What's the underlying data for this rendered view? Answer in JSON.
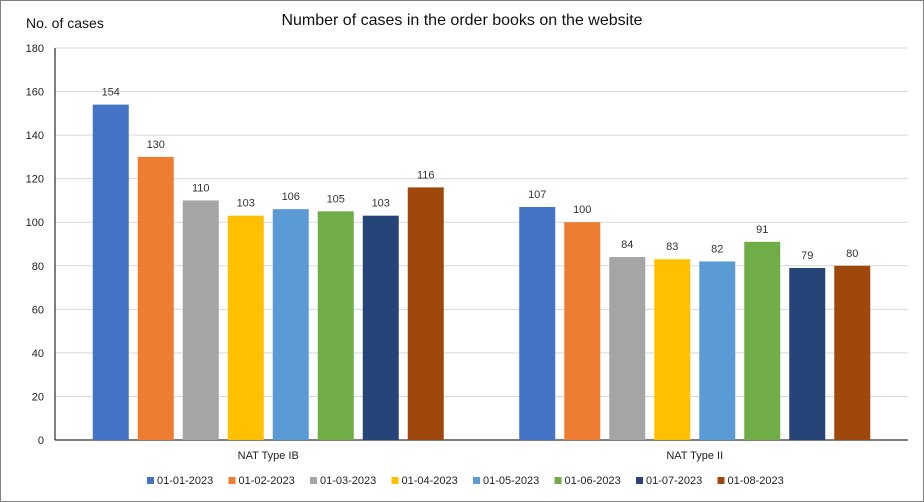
{
  "chart_data": {
    "type": "bar",
    "title": "Number of cases in the order books on the website",
    "ylabel": "No. of cases",
    "xlabel": "",
    "ylim": [
      0,
      180
    ],
    "yticks": [
      0,
      20,
      40,
      60,
      80,
      100,
      120,
      140,
      160,
      180
    ],
    "grid": true,
    "legend_position": "bottom",
    "categories": [
      "NAT Type IB",
      "NAT Type II"
    ],
    "series": [
      {
        "name": "01-01-2023",
        "color": "#4472C4",
        "values": [
          154,
          107
        ]
      },
      {
        "name": "01-02-2023",
        "color": "#ED7D31",
        "values": [
          130,
          100
        ]
      },
      {
        "name": "01-03-2023",
        "color": "#A5A5A5",
        "values": [
          110,
          84
        ]
      },
      {
        "name": "01-04-2023",
        "color": "#FFC000",
        "values": [
          103,
          83
        ]
      },
      {
        "name": "01-05-2023",
        "color": "#5B9BD5",
        "values": [
          106,
          82
        ]
      },
      {
        "name": "01-06-2023",
        "color": "#70AD47",
        "values": [
          105,
          91
        ]
      },
      {
        "name": "01-07-2023",
        "color": "#264478",
        "values": [
          103,
          79
        ]
      },
      {
        "name": "01-08-2023",
        "color": "#9E480E",
        "values": [
          116,
          80
        ]
      }
    ]
  }
}
